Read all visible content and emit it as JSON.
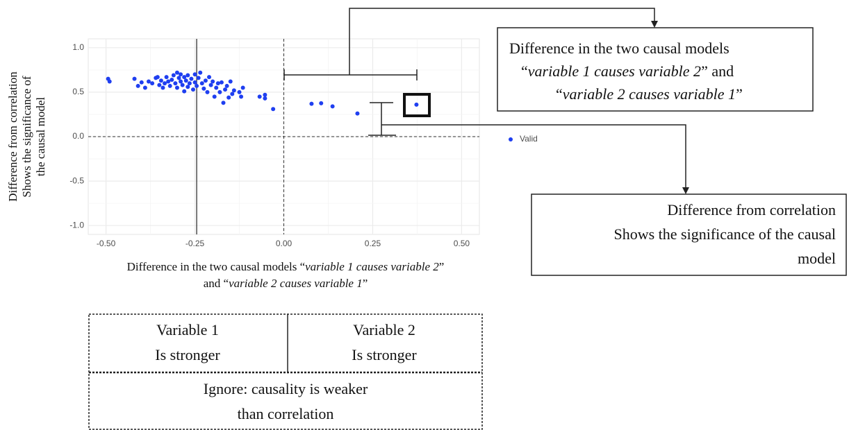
{
  "chart_data": {
    "type": "scatter",
    "xlim": [
      -0.55,
      0.55
    ],
    "ylim": [
      -1.1,
      1.1
    ],
    "xticks": [
      {
        "value": -0.5,
        "label": "-0.50"
      },
      {
        "value": -0.25,
        "label": "-0.25"
      },
      {
        "value": 0,
        "label": "0.00"
      },
      {
        "value": 0.25,
        "label": "0.25"
      },
      {
        "value": 0.5,
        "label": "0.50"
      }
    ],
    "yticks": [
      {
        "value": -1,
        "label": "-1.0"
      },
      {
        "value": -0.5,
        "label": "-0.5"
      },
      {
        "value": 0,
        "label": "0.0"
      },
      {
        "value": 0.5,
        "label": "0.5"
      },
      {
        "value": 1,
        "label": "1.0"
      }
    ],
    "grid": true,
    "legend": "right",
    "dashed_lines": {
      "x": 0,
      "y": 0
    },
    "solid_line": {
      "x": -0.245
    },
    "x_label": [
      [
        {
          "text": "Difference in the two causal models  “"
        },
        {
          "text": "variable 1 causes variable 2",
          "italic": true
        },
        {
          "text": "”"
        }
      ],
      [
        {
          "text": "and  “"
        },
        {
          "text": "variable 2 causes variable 1",
          "italic": true
        },
        {
          "text": "”"
        }
      ]
    ],
    "y_label": [
      [
        {
          "text": "Difference from correlation"
        }
      ],
      [
        {
          "text": "Shows the significance of"
        }
      ],
      [
        {
          "text": "the causal model"
        }
      ]
    ],
    "series": [
      {
        "name": "Valid",
        "color": "#1f3ff0",
        "x": [
          -0.494,
          -0.49,
          -0.42,
          -0.41,
          -0.4,
          -0.39,
          -0.38,
          -0.37,
          -0.36,
          -0.355,
          -0.35,
          -0.345,
          -0.34,
          -0.335,
          -0.33,
          -0.325,
          -0.32,
          -0.315,
          -0.31,
          -0.305,
          -0.3,
          -0.3,
          -0.295,
          -0.29,
          -0.29,
          -0.285,
          -0.28,
          -0.28,
          -0.275,
          -0.27,
          -0.27,
          -0.265,
          -0.26,
          -0.255,
          -0.25,
          -0.25,
          -0.245,
          -0.24,
          -0.235,
          -0.23,
          -0.225,
          -0.22,
          -0.215,
          -0.21,
          -0.205,
          -0.2,
          -0.195,
          -0.19,
          -0.185,
          -0.18,
          -0.175,
          -0.17,
          -0.165,
          -0.16,
          -0.155,
          -0.15,
          -0.145,
          -0.14,
          -0.125,
          -0.12,
          -0.115,
          -0.068,
          -0.053,
          -0.053,
          -0.03,
          0.078,
          0.105,
          0.137,
          0.207,
          0.373
        ],
        "y": [
          0.65,
          0.62,
          0.65,
          0.57,
          0.61,
          0.55,
          0.62,
          0.6,
          0.66,
          0.67,
          0.58,
          0.63,
          0.55,
          0.6,
          0.67,
          0.62,
          0.57,
          0.64,
          0.69,
          0.6,
          0.72,
          0.55,
          0.66,
          0.7,
          0.62,
          0.58,
          0.67,
          0.51,
          0.63,
          0.69,
          0.56,
          0.6,
          0.65,
          0.53,
          0.7,
          0.61,
          0.57,
          0.66,
          0.72,
          0.6,
          0.54,
          0.63,
          0.5,
          0.67,
          0.58,
          0.62,
          0.45,
          0.55,
          0.6,
          0.5,
          0.61,
          0.38,
          0.53,
          0.57,
          0.44,
          0.62,
          0.48,
          0.52,
          0.5,
          0.45,
          0.55,
          0.45,
          0.47,
          0.43,
          0.31,
          0.37,
          0.375,
          0.34,
          0.26,
          0.36
        ]
      }
    ]
  },
  "annotations": {
    "box1": [
      [
        {
          "text": "Difference in the two causal models"
        }
      ],
      [
        {
          "text": "“"
        },
        {
          "text": "variable 1 causes variable 2",
          "italic": true
        },
        {
          "text": "” and"
        }
      ],
      [
        {
          "text": "“"
        },
        {
          "text": "variable 2 causes variable 1",
          "italic": true
        },
        {
          "text": "”"
        }
      ]
    ],
    "box2": [
      [
        {
          "text": "Difference from correlation"
        }
      ],
      [
        {
          "text": "Shows the significance of the causal"
        }
      ],
      [
        {
          "text": "model"
        }
      ]
    ]
  },
  "table": {
    "rows": [
      [
        [
          "Variable 1",
          "Is stronger"
        ],
        [
          "Variable 2",
          "Is stronger"
        ]
      ],
      [
        [
          "Ignore: causality is weaker",
          "than correlation"
        ]
      ]
    ]
  }
}
